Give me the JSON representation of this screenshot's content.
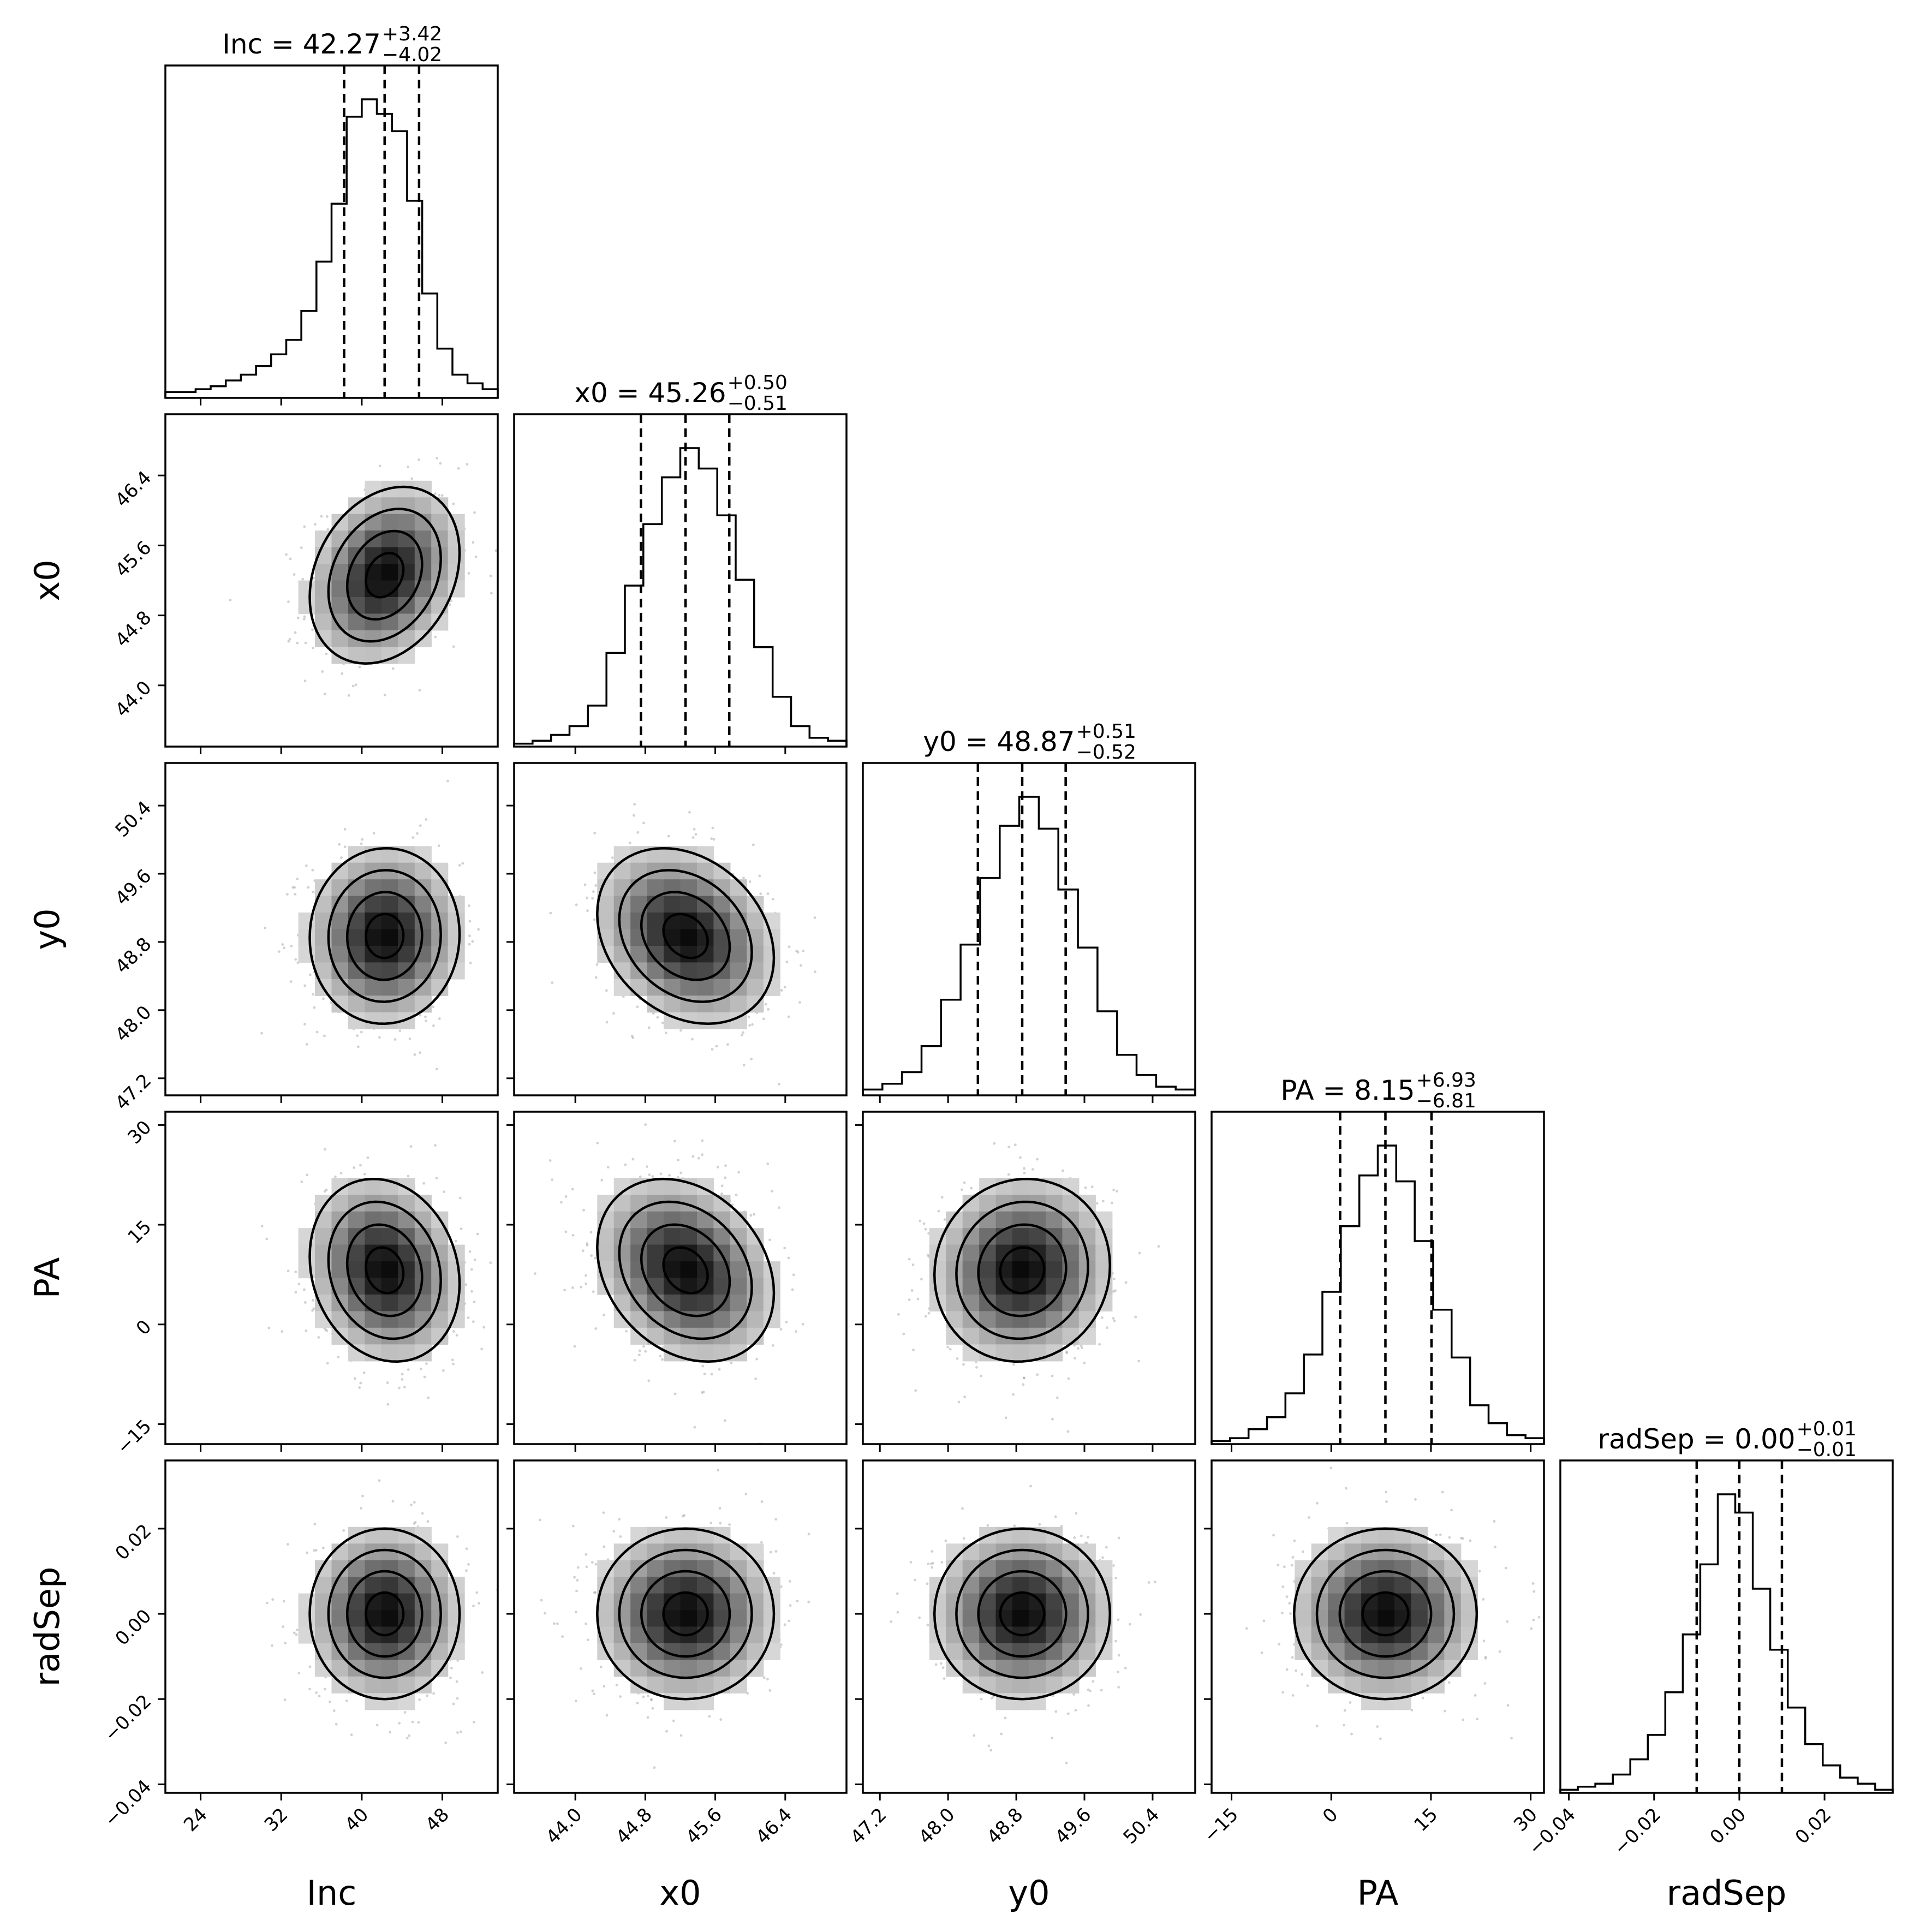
{
  "chart_data": {
    "type": "corner",
    "parameters": [
      {
        "name": "Inc",
        "median": 42.27,
        "plus": 3.42,
        "minus": 4.02,
        "title": "Inc = 42.27",
        "plus_text": "+3.42",
        "minus_text": "−4.02",
        "range": [
          20.5,
          53.5
        ],
        "ticks": [
          24,
          32,
          40,
          48
        ],
        "tick_labels": [
          "24",
          "32",
          "40",
          "48"
        ],
        "hist_counts": [
          2,
          2,
          3,
          4,
          6,
          8,
          11,
          15,
          20,
          30,
          47,
          67,
          97,
          103,
          98,
          92,
          68,
          36,
          17,
          8,
          5,
          3
        ]
      },
      {
        "name": "x0",
        "median": 45.26,
        "plus": 0.5,
        "minus": 0.51,
        "title": "x0 = 45.26",
        "plus_text": "+0.50",
        "minus_text": "−0.51",
        "range": [
          43.3,
          47.1
        ],
        "ticks": [
          44.0,
          44.8,
          45.6,
          46.4
        ],
        "tick_labels": [
          "44.0",
          "44.8",
          "45.6",
          "46.4"
        ],
        "hist_counts": [
          1,
          2,
          4,
          7,
          14,
          32,
          55,
          76,
          92,
          102,
          95,
          79,
          57,
          34,
          17,
          7,
          3,
          2
        ]
      },
      {
        "name": "y0",
        "median": 48.87,
        "plus": 0.51,
        "minus": 0.52,
        "title": "y0 = 48.87",
        "plus_text": "+0.51",
        "minus_text": "−0.52",
        "range": [
          47.0,
          50.9
        ],
        "ticks": [
          47.2,
          48.0,
          48.8,
          49.6,
          50.4
        ],
        "tick_labels": [
          "47.2",
          "48.0",
          "48.8",
          "49.6",
          "50.4"
        ],
        "hist_counts": [
          2,
          4,
          8,
          17,
          33,
          52,
          75,
          93,
          103,
          92,
          71,
          51,
          29,
          14,
          7,
          3,
          2
        ]
      },
      {
        "name": "PA",
        "median": 8.15,
        "plus": 6.93,
        "minus": 6.81,
        "title": "PA = 8.15",
        "plus_text": "+6.93",
        "minus_text": "−6.81",
        "range": [
          -18,
          32
        ],
        "ticks": [
          -15,
          0,
          15,
          30
        ],
        "tick_labels": [
          "−15",
          "0",
          "15",
          "30"
        ],
        "hist_counts": [
          1,
          2,
          5,
          9,
          17,
          30,
          51,
          73,
          90,
          100,
          88,
          68,
          45,
          29,
          13,
          7,
          3,
          2
        ]
      },
      {
        "name": "radSep",
        "median": 0.0,
        "plus": 0.01,
        "minus": 0.01,
        "title": "radSep = 0.00",
        "plus_text": "+0.01",
        "minus_text": "−0.01",
        "range": [
          -0.042,
          0.036
        ],
        "ticks": [
          -0.04,
          -0.02,
          0.0,
          0.02
        ],
        "tick_labels": [
          "−0.04",
          "−0.02",
          "0.00",
          "0.02"
        ],
        "hist_counts": [
          1,
          2,
          3,
          6,
          11,
          19,
          33,
          52,
          75,
          98,
          92,
          67,
          47,
          28,
          16,
          9,
          5,
          3,
          1
        ]
      }
    ],
    "correlations": {
      "1-0": 0.25,
      "2-0": 0.02,
      "2-1": -0.25,
      "3-0": -0.15,
      "3-1": -0.25,
      "3-2": 0.05,
      "4-0": 0.0,
      "4-1": 0.0,
      "4-2": 0.0,
      "4-3": 0.0
    },
    "contour_levels_sigma": [
      0.5,
      1.0,
      1.5,
      2.0
    ],
    "colors": {
      "line": "#000000",
      "points": "#9a9a9a",
      "background": "#ffffff"
    }
  }
}
